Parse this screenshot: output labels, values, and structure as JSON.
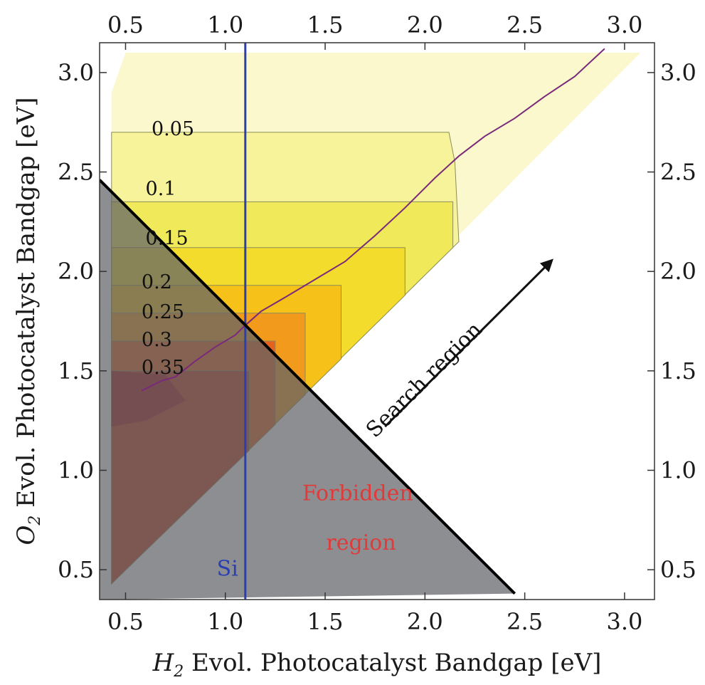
{
  "chart_data": {
    "type": "contour",
    "xlabel_var": "H",
    "xlabel_sub": "2",
    "xlabel_rest": " Evol. Photocatalyst Bandgap [eV]",
    "ylabel_var": "O",
    "ylabel_sub": "2",
    "ylabel_rest": " Evol. Photocatalyst Bandgap [eV]",
    "xlim": [
      0.37,
      3.15
    ],
    "ylim": [
      0.35,
      3.15
    ],
    "x_ticks": [
      0.5,
      1.0,
      1.5,
      2.0,
      2.5,
      3.0
    ],
    "x_tick_labels": [
      "0.5",
      "1.0",
      "1.5",
      "2.0",
      "2.5",
      "3.0"
    ],
    "y_ticks": [
      0.5,
      1.0,
      1.5,
      2.0,
      2.5,
      3.0
    ],
    "y_tick_labels": [
      "0.5",
      "1.0",
      "1.5",
      "2.0",
      "2.5",
      "3.0"
    ],
    "contour_levels": [
      {
        "label": "0.05",
        "value": 0.05,
        "y_top": 2.7,
        "label_x": 0.63,
        "label_y": 2.72,
        "color": "#f7f39a"
      },
      {
        "label": "0.1",
        "value": 0.1,
        "y_top": 2.35,
        "label_x": 0.6,
        "label_y": 2.42,
        "color": "#f0e95a"
      },
      {
        "label": "0.15",
        "value": 0.15,
        "y_top": 2.12,
        "label_x": 0.6,
        "label_y": 2.17,
        "color": "#f4dc2c"
      },
      {
        "label": "0.2",
        "value": 0.2,
        "y_top": 1.93,
        "label_x": 0.58,
        "label_y": 1.95,
        "color": "#f6c21a"
      },
      {
        "label": "0.25",
        "value": 0.25,
        "y_top": 1.79,
        "label_x": 0.58,
        "label_y": 1.8,
        "color": "#f29a1c"
      },
      {
        "label": "0.3",
        "value": 0.3,
        "y_top": 1.65,
        "label_x": 0.58,
        "label_y": 1.66,
        "color": "#e4621c"
      },
      {
        "label": "0.35",
        "value": 0.35,
        "y_top": 1.5,
        "label_x": 0.58,
        "label_y": 1.52,
        "color": "#c83a1a"
      }
    ],
    "peak_color": "#a81a18",
    "optimal_line": {
      "name": "optimal",
      "color": "#7a2a7a",
      "points": [
        [
          0.58,
          1.4
        ],
        [
          0.68,
          1.45
        ],
        [
          0.75,
          1.47
        ],
        [
          0.85,
          1.55
        ],
        [
          0.95,
          1.62
        ],
        [
          1.05,
          1.68
        ],
        [
          1.09,
          1.72
        ],
        [
          1.18,
          1.8
        ],
        [
          1.3,
          1.87
        ],
        [
          1.45,
          1.96
        ],
        [
          1.6,
          2.05
        ],
        [
          1.75,
          2.18
        ],
        [
          1.9,
          2.32
        ],
        [
          2.05,
          2.47
        ],
        [
          2.17,
          2.58
        ],
        [
          2.3,
          2.68
        ],
        [
          2.45,
          2.77
        ],
        [
          2.6,
          2.88
        ],
        [
          2.75,
          2.98
        ],
        [
          2.9,
          3.12
        ]
      ]
    },
    "si_line": {
      "label": "Si",
      "x": 1.1,
      "color": "#2b3fb0"
    },
    "forbidden_boundary": {
      "from": [
        0.37,
        2.46
      ],
      "to": [
        2.45,
        0.38
      ]
    },
    "forbidden_label_lines": [
      "Forbidden",
      "region"
    ],
    "forbidden_label_color": "#e03a3a",
    "forbidden_color": "#5f6368",
    "search_region_label": "Search region",
    "search_arrow": {
      "from": [
        1.8,
        1.22
      ],
      "to": [
        2.63,
        2.05
      ]
    }
  }
}
